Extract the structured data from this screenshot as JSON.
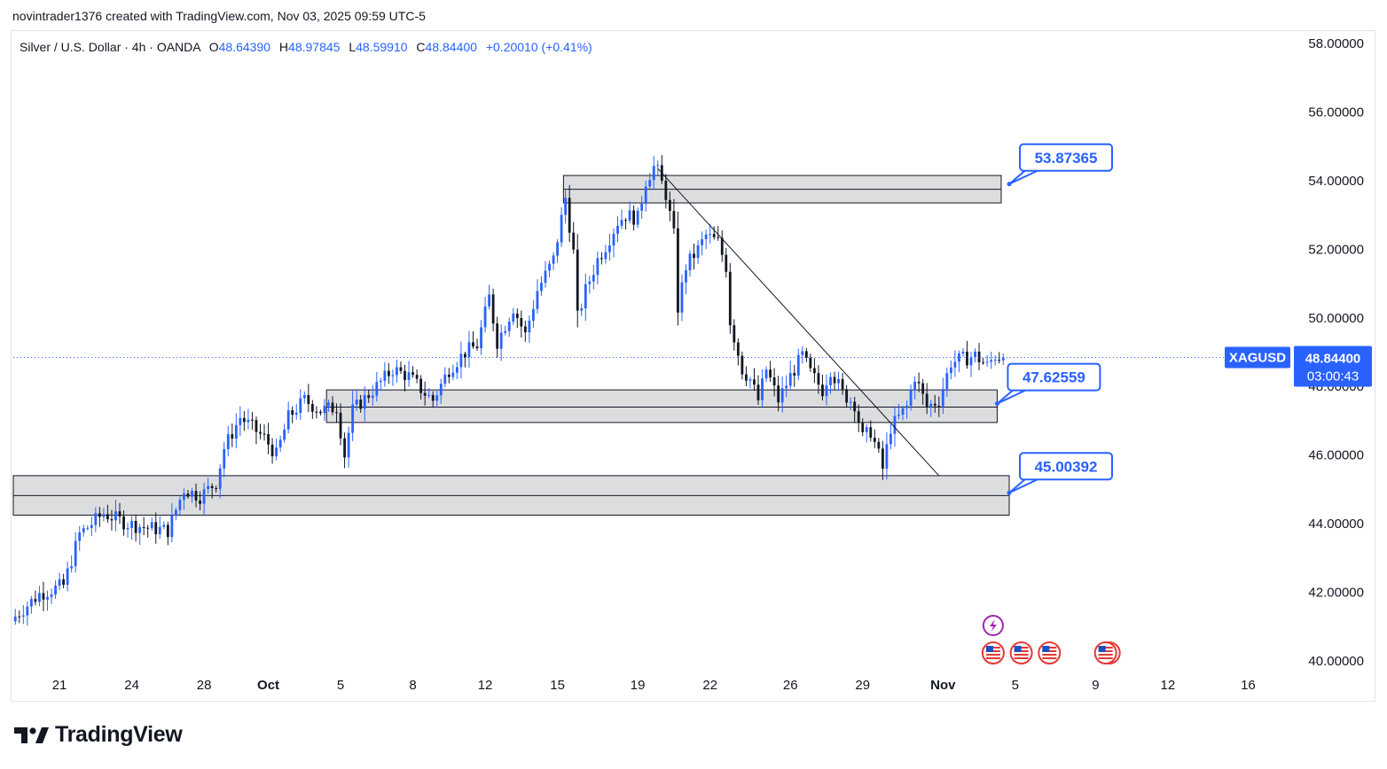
{
  "credit": "novintrader1376 created with TradingView.com, Nov 03, 2025 09:59 UTC-5",
  "legend": {
    "symbol": "Silver / U.S. Dollar · 4h · OANDA",
    "open_label": "O",
    "open": "48.64390",
    "high_label": "H",
    "high": "48.97845",
    "low_label": "L",
    "low": "48.59910",
    "close_label": "C",
    "close": "48.84400",
    "change": "+0.20010 (+0.41%)"
  },
  "colors": {
    "up": "#2962ff",
    "down": "#131722",
    "zone": "#d6d7d9",
    "zone_line": "#131722",
    "accent": "#2962ff"
  },
  "chart_data": {
    "type": "candlestick",
    "title": "Silver / U.S. Dollar · 4h · OANDA",
    "ylim": [
      40,
      58
    ],
    "y_ticks": [
      "58.00000",
      "56.00000",
      "54.00000",
      "52.00000",
      "50.00000",
      "48.00000",
      "46.00000",
      "44.00000",
      "42.00000",
      "40.00000"
    ],
    "y_tick_values": [
      58,
      56,
      54,
      52,
      50,
      48,
      46,
      44,
      42,
      40
    ],
    "x_ticks": [
      {
        "label": "21",
        "bar": 11
      },
      {
        "label": "24",
        "bar": 29
      },
      {
        "label": "28",
        "bar": 47
      },
      {
        "label": "Oct",
        "bar": 63
      },
      {
        "label": "5",
        "bar": 81
      },
      {
        "label": "8",
        "bar": 99
      },
      {
        "label": "12",
        "bar": 117
      },
      {
        "label": "15",
        "bar": 135
      },
      {
        "label": "19",
        "bar": 155
      },
      {
        "label": "22",
        "bar": 173
      },
      {
        "label": "26",
        "bar": 193
      },
      {
        "label": "29",
        "bar": 211
      },
      {
        "label": "Nov",
        "bar": 231
      },
      {
        "label": "5",
        "bar": 249
      },
      {
        "label": "9",
        "bar": 269
      },
      {
        "label": "12",
        "bar": 287
      },
      {
        "label": "16",
        "bar": 307
      }
    ],
    "bars_in_view": 318,
    "current_price": {
      "symbol": "XAGUSD",
      "value": "48.84400",
      "countdown": "03:00:43",
      "price": 48.844
    },
    "zones": [
      {
        "name": "resistance-zone",
        "high": 54.15,
        "low": 53.35,
        "mid": 53.75,
        "start_bar": 137,
        "end_bar": 246
      },
      {
        "name": "mid-support-zone",
        "high": 47.9,
        "low": 46.95,
        "mid": 47.4,
        "start_bar": 78,
        "end_bar": 245
      },
      {
        "name": "low-support-zone",
        "high": 45.4,
        "low": 44.25,
        "mid": 44.82,
        "start_bar": 0,
        "end_bar": 248
      }
    ],
    "callouts": [
      {
        "label": "53.87365",
        "price": 53.87365,
        "anchor_bar": 248,
        "anchor_price": 53.9
      },
      {
        "label": "47.62559",
        "price": 47.62559,
        "anchor_bar": 245,
        "anchor_price": 47.5
      },
      {
        "label": "45.00392",
        "price": 45.00392,
        "anchor_bar": 248,
        "anchor_price": 44.9
      }
    ],
    "trendline": {
      "from": {
        "bar": 160,
        "price": 54.35
      },
      "to": {
        "bar": 230,
        "price": 45.4
      }
    },
    "events": [
      {
        "type": "flash",
        "bar": 244
      },
      {
        "type": "us-flag",
        "bar": 244
      },
      {
        "type": "us-flag",
        "bar": 251
      },
      {
        "type": "us-flag",
        "bar": 258
      },
      {
        "type": "us-flag-multi",
        "bar": 272
      }
    ],
    "anchors": [
      [
        0,
        41.3
      ],
      [
        6,
        41.95
      ],
      [
        12,
        42.2
      ],
      [
        16,
        43.7
      ],
      [
        22,
        44.3
      ],
      [
        28,
        44.0
      ],
      [
        32,
        43.9
      ],
      [
        38,
        43.8
      ],
      [
        42,
        45.0
      ],
      [
        46,
        44.8
      ],
      [
        50,
        45.2
      ],
      [
        52,
        46.2
      ],
      [
        56,
        47.1
      ],
      [
        62,
        46.5
      ],
      [
        65,
        46.0
      ],
      [
        68,
        47.1
      ],
      [
        72,
        47.6
      ],
      [
        76,
        47.3
      ],
      [
        80,
        47.4
      ],
      [
        82,
        46.0
      ],
      [
        84,
        47.3
      ],
      [
        90,
        48.0
      ],
      [
        94,
        48.5
      ],
      [
        98,
        48.3
      ],
      [
        102,
        47.8
      ],
      [
        104,
        47.6
      ],
      [
        108,
        48.5
      ],
      [
        112,
        49.0
      ],
      [
        115,
        49.2
      ],
      [
        118,
        50.6
      ],
      [
        120,
        49.3
      ],
      [
        124,
        50.3
      ],
      [
        127,
        49.5
      ],
      [
        130,
        50.8
      ],
      [
        134,
        51.7
      ],
      [
        137,
        53.5
      ],
      [
        139,
        51.9
      ],
      [
        140,
        50.0
      ],
      [
        142,
        50.8
      ],
      [
        145,
        51.7
      ],
      [
        147,
        52.1
      ],
      [
        150,
        52.8
      ],
      [
        152,
        53.0
      ],
      [
        155,
        52.9
      ],
      [
        157,
        54.0
      ],
      [
        159,
        54.4
      ],
      [
        160,
        54.25
      ],
      [
        162,
        53.6
      ],
      [
        164,
        52.4
      ],
      [
        165,
        50.3
      ],
      [
        167,
        51.5
      ],
      [
        170,
        52.0
      ],
      [
        172,
        52.4
      ],
      [
        175,
        52.2
      ],
      [
        177,
        51.5
      ],
      [
        178,
        49.9
      ],
      [
        181,
        48.5
      ],
      [
        183,
        48.2
      ],
      [
        185,
        47.6
      ],
      [
        187,
        48.5
      ],
      [
        190,
        47.6
      ],
      [
        193,
        48.3
      ],
      [
        196,
        48.9
      ],
      [
        198,
        48.4
      ],
      [
        201,
        47.9
      ],
      [
        203,
        48.5
      ],
      [
        206,
        47.8
      ],
      [
        209,
        47.5
      ],
      [
        211,
        46.5
      ],
      [
        213,
        46.7
      ],
      [
        215,
        46.0
      ],
      [
        216,
        45.6
      ],
      [
        218,
        46.8
      ],
      [
        220,
        47.1
      ],
      [
        222,
        47.4
      ],
      [
        224,
        48.3
      ],
      [
        227,
        47.4
      ],
      [
        230,
        47.6
      ],
      [
        233,
        48.7
      ],
      [
        236,
        48.8
      ],
      [
        239,
        48.9
      ],
      [
        242,
        48.6
      ],
      [
        244,
        48.9
      ],
      [
        246,
        48.844
      ]
    ]
  }
}
